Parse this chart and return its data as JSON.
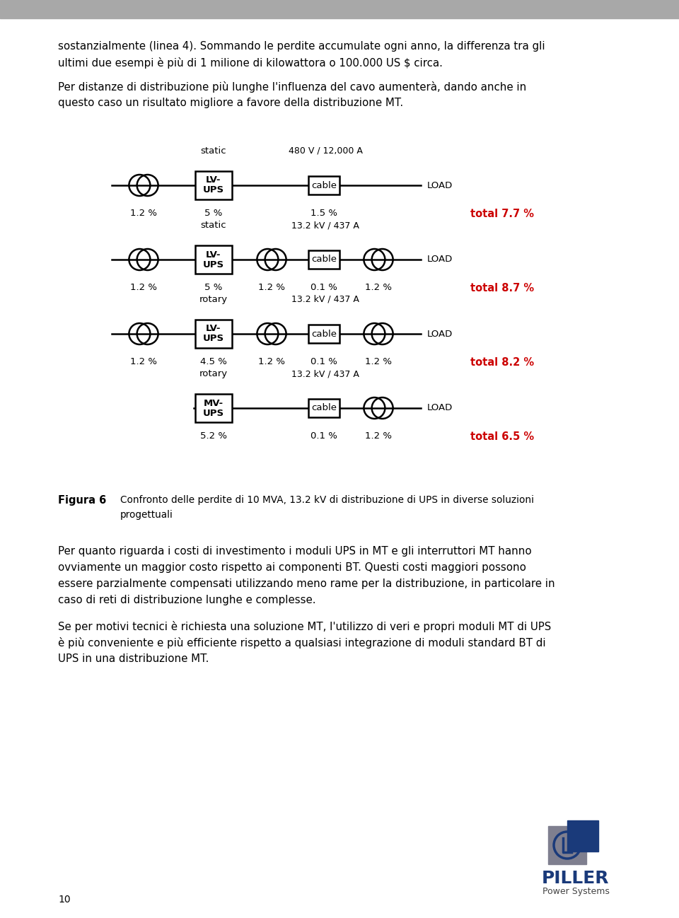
{
  "background_color": "#ffffff",
  "header_bg": "#a8a8a8",
  "page_width": 9.6,
  "page_height": 12.98,
  "top_text_lines": [
    "sostanzialmente (linea 4). Sommando le perdite accumulate ogni anno, la differenza tra gli",
    "ultimi due esempi è più di 1 milione di kilowattora o 100.000 US $ circa."
  ],
  "para2_lines": [
    "Per distanze di distribuzione più lunghe l'influenza del cavo aumenterà, dando anche in",
    "questo caso un risultato migliore a favore della distribuzione MT."
  ],
  "diagrams": [
    {
      "label": "static",
      "ups_label": "LV-\nUPS",
      "voltage": "480 V / 12,000 A",
      "has_left_transformer": true,
      "has_right_transformer": false,
      "has_mid_transformer": false,
      "percentages": [
        "1.2 %",
        "5 %",
        "1.5 %"
      ],
      "pct_keys": [
        0,
        1,
        3
      ],
      "total": "total 7.7 %"
    },
    {
      "label": "static",
      "ups_label": "LV-\nUPS",
      "voltage": "13.2 kV / 437 A",
      "has_left_transformer": true,
      "has_right_transformer": true,
      "has_mid_transformer": true,
      "percentages": [
        "1.2 %",
        "5 %",
        "1.2 %",
        "0.1 %",
        "1.2 %"
      ],
      "pct_keys": [
        0,
        1,
        2,
        3,
        4
      ],
      "total": "total 8.7 %"
    },
    {
      "label": "rotary",
      "ups_label": "LV-\nUPS",
      "voltage": "13.2 kV / 437 A",
      "has_left_transformer": true,
      "has_right_transformer": true,
      "has_mid_transformer": true,
      "percentages": [
        "1.2 %",
        "4.5 %",
        "1.2 %",
        "0.1 %",
        "1.2 %"
      ],
      "pct_keys": [
        0,
        1,
        2,
        3,
        4
      ],
      "total": "total 8.2 %"
    },
    {
      "label": "rotary",
      "ups_label": "MV-\nUPS",
      "voltage": "13.2 kV / 437 A",
      "has_left_transformer": false,
      "has_right_transformer": true,
      "has_mid_transformer": false,
      "percentages": [
        "5.2 %",
        "0.1 %",
        "1.2 %"
      ],
      "pct_keys": [
        1,
        3,
        4
      ],
      "total": "total 6.5 %"
    }
  ],
  "figura_label": "Figura 6",
  "figura_text_line1": "Confronto delle perdite di 10 MVA, 13.2 kV di distribuzione di UPS in diverse soluzioni",
  "figura_text_line2": "progettuali",
  "body_paragraphs": [
    [
      "Per quanto riguarda i costi di investimento i moduli UPS in MT e gli interruttori MT hanno",
      "ovviamente un maggior costo rispetto ai componenti BT. Questi costi maggiori possono",
      "essere parzialmente compensati utilizzando meno rame per la distribuzione, in particolare in",
      "caso di reti di distribuzione lunghe e complesse."
    ],
    [
      "Se per motivi tecnici è richiesta una soluzione MT, l'utilizzo di veri e propri moduli MT di UPS",
      "è più conveniente e più efficiente rispetto a qualsiasi integrazione di moduli standard BT di",
      "UPS in una distribuzione MT."
    ]
  ],
  "total_color": "#cc0000",
  "text_color": "#000000",
  "page_number": "10",
  "logo_gray": "#7f7f8f",
  "logo_blue": "#1a3a7a"
}
